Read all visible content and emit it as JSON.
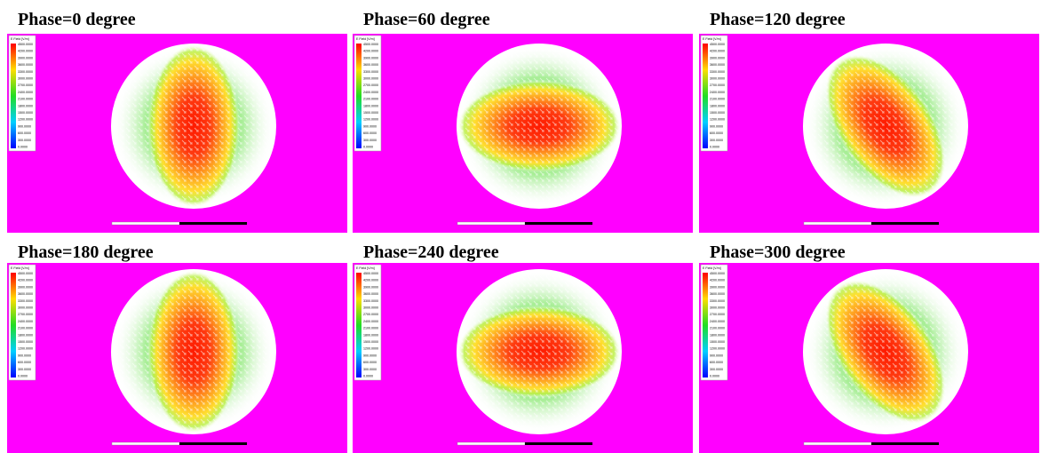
{
  "panels": [
    {
      "title": "Phase=0 degree"
    },
    {
      "title": "Phase=60 degree"
    },
    {
      "title": "Phase=120 degree"
    },
    {
      "title": "Phase=180 degree"
    },
    {
      "title": "Phase=240 degree"
    },
    {
      "title": "Phase=300 degree"
    }
  ],
  "legend": {
    "title": "E Field [V/m]",
    "values": [
      "4500.0000",
      "4200.0000",
      "3900.0000",
      "3600.0000",
      "3300.0000",
      "3000.0000",
      "2700.0000",
      "2400.0000",
      "2100.0000",
      "1800.0000",
      "1500.0000",
      "1200.0000",
      "900.0000",
      "600.0000",
      "300.0000",
      "0.0000"
    ]
  }
}
